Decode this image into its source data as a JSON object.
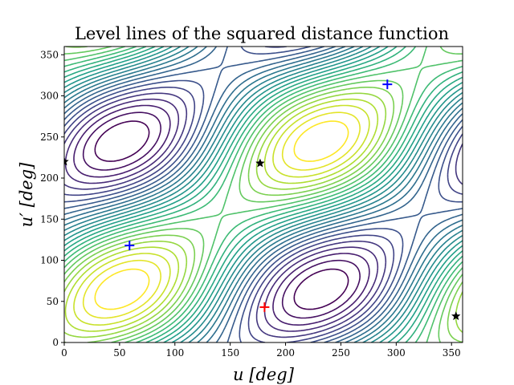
{
  "chart_data": {
    "type": "contour",
    "title": "Level lines of the squared distance function",
    "xlabel": "u [deg]",
    "ylabel": "u′ [deg]",
    "xlim": [
      0,
      360
    ],
    "ylim": [
      0,
      360
    ],
    "xticks": [
      0,
      50,
      100,
      150,
      200,
      250,
      300,
      350
    ],
    "yticks": [
      0,
      50,
      100,
      150,
      200,
      250,
      300,
      350
    ],
    "colormap": "viridis",
    "grid": false,
    "markers": [
      {
        "kind": "minimum",
        "symbol": "plus",
        "color": "#0000ff",
        "x": 59,
        "y": 118
      },
      {
        "kind": "minimum",
        "symbol": "plus",
        "color": "#0000ff",
        "x": 292,
        "y": 314
      },
      {
        "kind": "maximum",
        "symbol": "plus",
        "color": "#ff0000",
        "x": 181,
        "y": 43
      },
      {
        "kind": "saddle",
        "symbol": "star",
        "color": "#000000",
        "x": 177,
        "y": 218
      },
      {
        "kind": "saddle",
        "symbol": "star",
        "color": "#000000",
        "x": 0,
        "y": 220
      },
      {
        "kind": "saddle",
        "symbol": "star",
        "color": "#000000",
        "x": 354,
        "y": 32
      }
    ]
  }
}
